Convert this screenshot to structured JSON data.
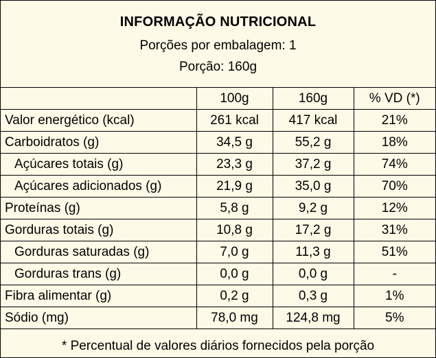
{
  "header": {
    "title": "INFORMAÇÃO NUTRICIONAL",
    "servings_per_package": "Porções por embalagem: 1",
    "serving_size": "Porção: 160g"
  },
  "columns": [
    "",
    "100g",
    "160g",
    "% VD (*)"
  ],
  "rows": [
    {
      "label": "Valor energético (kcal)",
      "per100": "261 kcal",
      "per160": "417 kcal",
      "vd": "21%",
      "indent": false
    },
    {
      "label": "Carboidratos (g)",
      "per100": "34,5 g",
      "per160": "55,2 g",
      "vd": "18%",
      "indent": false
    },
    {
      "label": "Açúcares totais (g)",
      "per100": "23,3 g",
      "per160": "37,2 g",
      "vd": "74%",
      "indent": true
    },
    {
      "label": "Açúcares adicionados (g)",
      "per100": "21,9 g",
      "per160": "35,0 g",
      "vd": "70%",
      "indent": true
    },
    {
      "label": "Proteínas (g)",
      "per100": "5,8 g",
      "per160": "9,2 g",
      "vd": "12%",
      "indent": false
    },
    {
      "label": "Gorduras totais (g)",
      "per100": "10,8 g",
      "per160": "17,2 g",
      "vd": "31%",
      "indent": false
    },
    {
      "label": "Gorduras saturadas (g)",
      "per100": "7,0 g",
      "per160": "11,3 g",
      "vd": "51%",
      "indent": true
    },
    {
      "label": "Gorduras trans (g)",
      "per100": "0,0 g",
      "per160": "0,0 g",
      "vd": "-",
      "indent": true
    },
    {
      "label": "Fibra alimentar (g)",
      "per100": "0,2 g",
      "per160": "0,3 g",
      "vd": "1%",
      "indent": false
    },
    {
      "label": "Sódio (mg)",
      "per100": "78,0 mg",
      "per160": "124,8 mg",
      "vd": "5%",
      "indent": false
    }
  ],
  "footnote": "* Percentual de valores diários fornecidos pela porção",
  "colors": {
    "background": "#fdfae7",
    "border": "#000000",
    "text": "#000000"
  }
}
